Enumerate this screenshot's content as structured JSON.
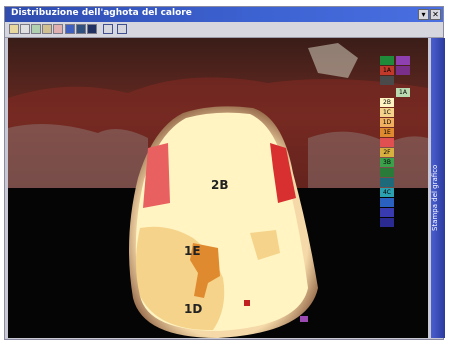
{
  "window": {
    "title": "Distribuzione dell'aghota del calore",
    "buttons": {
      "menu": "▾",
      "close": "✕"
    }
  },
  "toolbar": {
    "tools": [
      "tool-1",
      "tool-2",
      "tool-3",
      "tool-4",
      "tool-5",
      "tool-6",
      "tool-7",
      "tool-8",
      "tool-9",
      "tool-10"
    ]
  },
  "side_panel": {
    "label": "Stampa del grafico"
  },
  "zones": [
    {
      "label": "2B"
    },
    {
      "label": "1E"
    },
    {
      "label": "1D"
    }
  ],
  "legend": {
    "items": [
      {
        "label": "",
        "color": "#1e8a3a"
      },
      {
        "label": "",
        "color": "#8e3fb0"
      },
      {
        "label": "1A",
        "color": "#c0392b"
      },
      {
        "label": "",
        "color": "#7a2f8a"
      },
      {
        "label": "",
        "color": "#4a4a4a"
      },
      {
        "label": "1A",
        "color": "#b9d9b0"
      },
      {
        "label": "2B",
        "color": "#fff4c2"
      },
      {
        "label": "1C",
        "color": "#f5d38a"
      },
      {
        "label": "1D",
        "color": "#f0b060"
      },
      {
        "label": "1E",
        "color": "#e08a30"
      },
      {
        "label": "",
        "color": "#e05050"
      },
      {
        "label": "2F",
        "color": "#d8b040"
      },
      {
        "label": "3B",
        "color": "#3aa04a"
      },
      {
        "label": "",
        "color": "#2a7a3a"
      },
      {
        "label": "",
        "color": "#1e6a7a"
      },
      {
        "label": "4C",
        "color": "#2aa0b0"
      },
      {
        "label": "",
        "color": "#2a60c0"
      },
      {
        "label": "",
        "color": "#3a3ab0"
      },
      {
        "label": "",
        "color": "#2a2a90"
      }
    ]
  }
}
